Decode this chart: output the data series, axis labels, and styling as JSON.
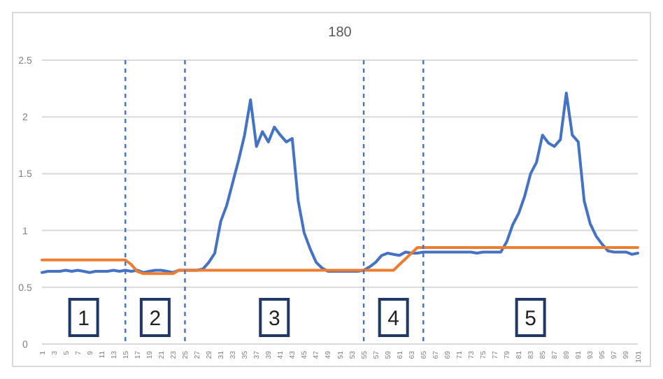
{
  "chart_data": {
    "type": "line",
    "title": "180",
    "x": [
      1,
      2,
      3,
      4,
      5,
      6,
      7,
      8,
      9,
      10,
      11,
      12,
      13,
      14,
      15,
      16,
      17,
      18,
      19,
      20,
      21,
      22,
      23,
      24,
      25,
      26,
      27,
      28,
      29,
      30,
      31,
      32,
      33,
      34,
      35,
      36,
      37,
      38,
      39,
      40,
      41,
      42,
      43,
      44,
      45,
      46,
      47,
      48,
      49,
      50,
      51,
      52,
      53,
      54,
      55,
      56,
      57,
      58,
      59,
      60,
      61,
      62,
      63,
      64,
      65,
      66,
      67,
      68,
      69,
      70,
      71,
      72,
      73,
      74,
      75,
      76,
      77,
      78,
      79,
      80,
      81,
      82,
      83,
      84,
      85,
      86,
      87,
      88,
      89,
      90,
      91,
      92,
      93,
      94,
      95,
      96,
      97,
      98,
      99,
      100,
      101
    ],
    "series": [
      {
        "color": "#4472c4",
        "values": [
          0.63,
          0.64,
          0.64,
          0.64,
          0.65,
          0.64,
          0.65,
          0.64,
          0.63,
          0.64,
          0.64,
          0.64,
          0.65,
          0.64,
          0.65,
          0.64,
          0.65,
          0.63,
          0.64,
          0.65,
          0.65,
          0.64,
          0.63,
          0.65,
          0.65,
          0.65,
          0.65,
          0.66,
          0.72,
          0.8,
          1.08,
          1.22,
          1.42,
          1.62,
          1.84,
          2.15,
          1.74,
          1.87,
          1.78,
          1.91,
          1.84,
          1.78,
          1.81,
          1.26,
          0.98,
          0.84,
          0.72,
          0.67,
          0.64,
          0.64,
          0.64,
          0.64,
          0.64,
          0.64,
          0.65,
          0.68,
          0.72,
          0.78,
          0.8,
          0.79,
          0.78,
          0.81,
          0.8,
          0.8,
          0.81,
          0.81,
          0.81,
          0.81,
          0.81,
          0.81,
          0.81,
          0.81,
          0.81,
          0.8,
          0.81,
          0.81,
          0.81,
          0.81,
          0.9,
          1.05,
          1.15,
          1.3,
          1.5,
          1.6,
          1.84,
          1.77,
          1.74,
          1.8,
          2.21,
          1.84,
          1.78,
          1.26,
          1.06,
          0.95,
          0.88,
          0.82,
          0.81,
          0.81,
          0.81,
          0.79,
          0.8
        ]
      },
      {
        "color": "#ed7d31",
        "values": [
          0.74,
          0.74,
          0.74,
          0.74,
          0.74,
          0.74,
          0.74,
          0.74,
          0.74,
          0.74,
          0.74,
          0.74,
          0.74,
          0.74,
          0.74,
          0.7,
          0.64,
          0.62,
          0.62,
          0.62,
          0.62,
          0.62,
          0.62,
          0.65,
          0.65,
          0.65,
          0.65,
          0.65,
          0.65,
          0.65,
          0.65,
          0.65,
          0.65,
          0.65,
          0.65,
          0.65,
          0.65,
          0.65,
          0.65,
          0.65,
          0.65,
          0.65,
          0.65,
          0.65,
          0.65,
          0.65,
          0.65,
          0.65,
          0.65,
          0.65,
          0.65,
          0.65,
          0.65,
          0.65,
          0.65,
          0.65,
          0.65,
          0.65,
          0.65,
          0.65,
          0.7,
          0.75,
          0.8,
          0.85,
          0.85,
          0.85,
          0.85,
          0.85,
          0.85,
          0.85,
          0.85,
          0.85,
          0.85,
          0.85,
          0.85,
          0.85,
          0.85,
          0.85,
          0.85,
          0.85,
          0.85,
          0.85,
          0.85,
          0.85,
          0.85,
          0.85,
          0.85,
          0.85,
          0.85,
          0.85,
          0.85,
          0.85,
          0.85,
          0.85,
          0.85,
          0.85,
          0.85,
          0.85,
          0.85,
          0.85,
          0.85
        ]
      }
    ],
    "xlim": [
      1,
      101
    ],
    "xticks": [
      1,
      3,
      5,
      7,
      9,
      11,
      13,
      15,
      17,
      19,
      21,
      23,
      25,
      27,
      29,
      31,
      33,
      35,
      37,
      39,
      41,
      43,
      45,
      47,
      49,
      51,
      53,
      55,
      57,
      59,
      61,
      63,
      65,
      67,
      69,
      71,
      73,
      75,
      77,
      79,
      81,
      83,
      85,
      87,
      89,
      91,
      93,
      95,
      97,
      99,
      101
    ],
    "ylim": [
      0,
      2.5
    ],
    "yticks": [
      0,
      0.5,
      1,
      1.5,
      2,
      2.5
    ],
    "grid": "y",
    "ref_lines": [
      {
        "axis": "x",
        "value": 15,
        "color": "#4472c4",
        "line_style": "dashed"
      },
      {
        "axis": "x",
        "value": 25,
        "color": "#4472c4",
        "line_style": "dashed"
      },
      {
        "axis": "x",
        "value": 55,
        "color": "#4472c4",
        "line_style": "dashed"
      },
      {
        "axis": "x",
        "value": 65,
        "color": "#4472c4",
        "line_style": "dashed"
      }
    ],
    "annotations": [
      "1",
      "2",
      "3",
      "4",
      "5"
    ]
  }
}
